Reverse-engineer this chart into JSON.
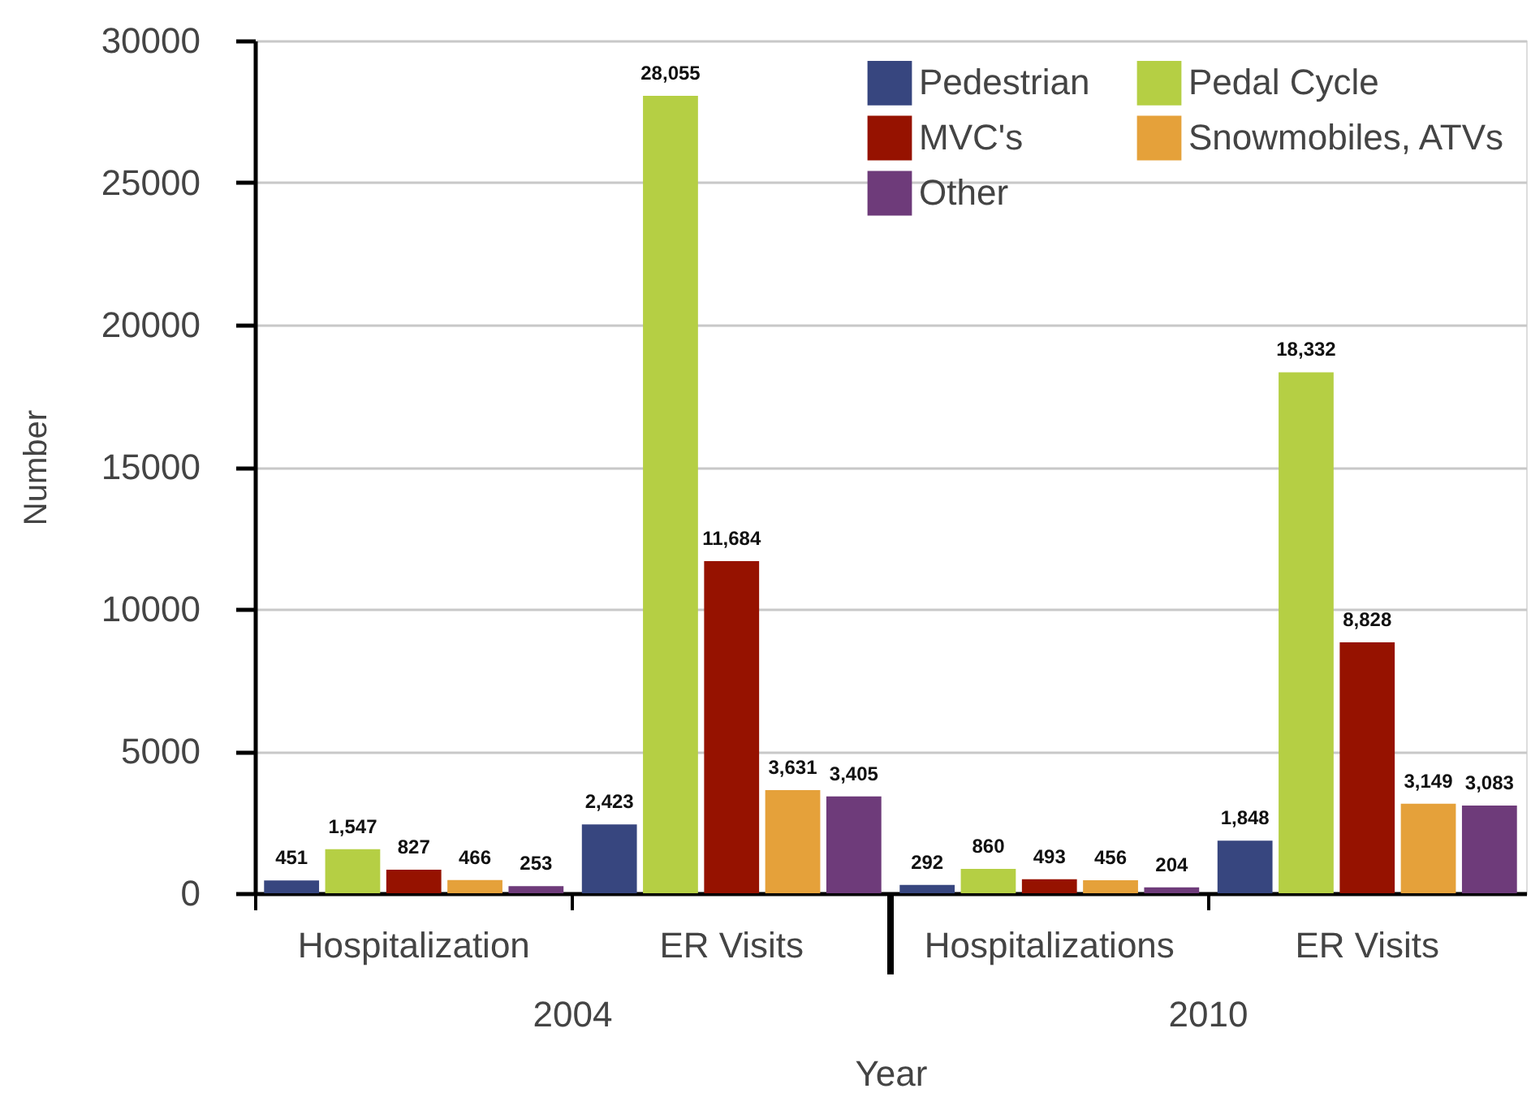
{
  "chart_data": {
    "type": "bar",
    "xlabel": "Year",
    "ylabel": "Number",
    "categories": [
      "Hospitalization",
      "ER Visits",
      "Hospitalizations",
      "ER Visits"
    ],
    "ylim": [
      0,
      30000
    ],
    "yticks": [
      0,
      5000,
      10000,
      15000,
      20000,
      25000,
      30000
    ],
    "grid": "y",
    "legend": "top right",
    "annotations": [
      "2004",
      "2010"
    ],
    "series": [
      {
        "name": "Pedestrian",
        "color": "#37467f",
        "values": [
          451,
          2423,
          292,
          1848
        ],
        "value_labels": [
          "451",
          "2,423",
          "292",
          "1,848"
        ]
      },
      {
        "name": "Pedal Cycle",
        "color": "#b5cf44",
        "values": [
          1547,
          28055,
          860,
          18332
        ],
        "value_labels": [
          "1,547",
          "28,055",
          "860",
          "18,332"
        ]
      },
      {
        "name": "MVC's",
        "color": "#961200",
        "values": [
          827,
          11684,
          493,
          8828
        ],
        "value_labels": [
          "827",
          "11,684",
          "493",
          "8,828"
        ]
      },
      {
        "name": "Snowmobiles, ATVs",
        "color": "#e5a13a",
        "values": [
          466,
          3631,
          456,
          3149
        ],
        "value_labels": [
          "466",
          "3,631",
          "456",
          "3,149"
        ]
      },
      {
        "name": "Other",
        "color": "#6e3b7a",
        "values": [
          253,
          3405,
          204,
          3083
        ],
        "value_labels": [
          "253",
          "3,405",
          "204",
          "3,083"
        ]
      }
    ]
  }
}
